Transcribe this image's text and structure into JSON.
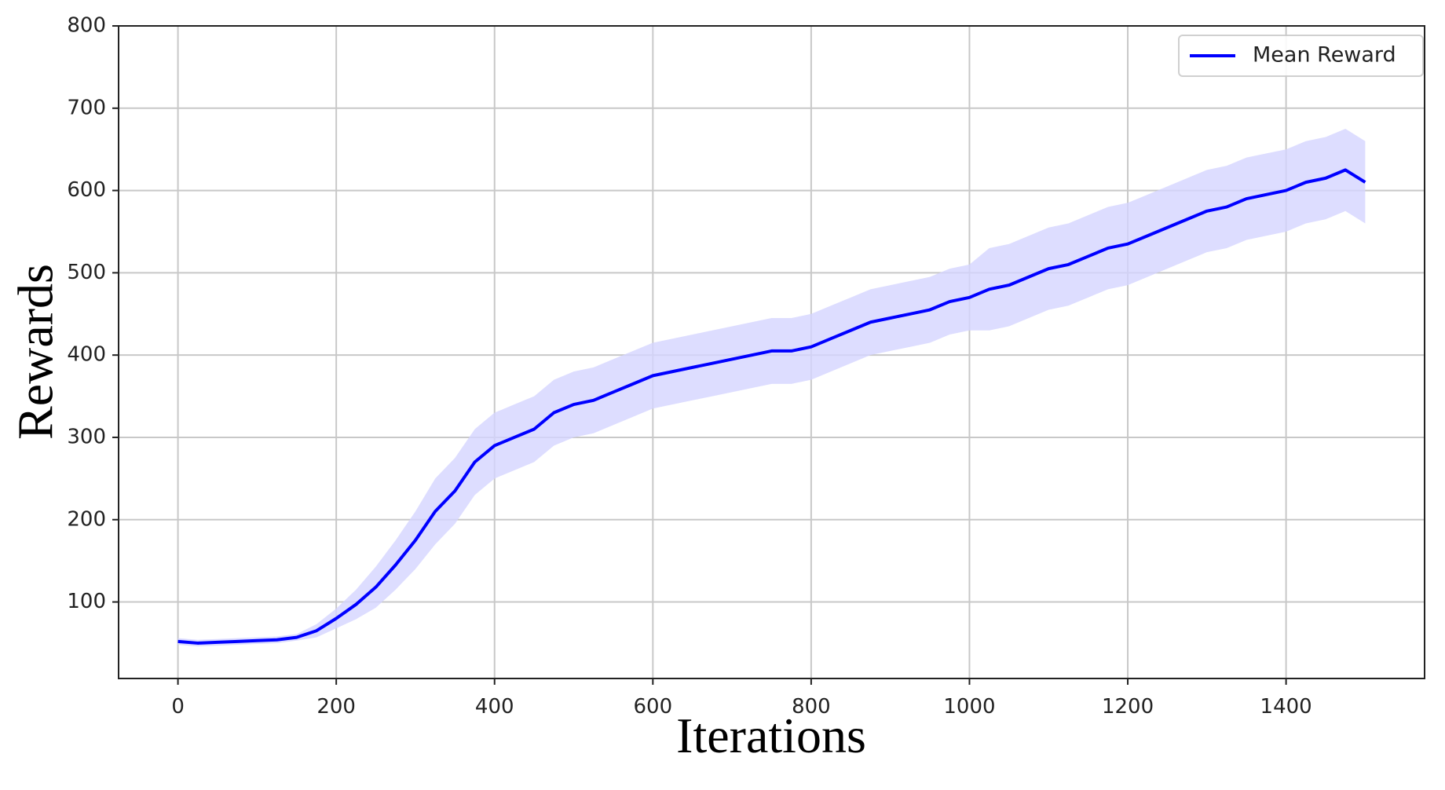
{
  "chart_data": {
    "type": "line",
    "x_label": "Iterations",
    "y_label": "Rewards",
    "x": [
      0,
      25,
      50,
      75,
      100,
      125,
      150,
      175,
      200,
      225,
      250,
      275,
      300,
      325,
      350,
      375,
      400,
      425,
      450,
      475,
      500,
      525,
      550,
      575,
      600,
      625,
      650,
      675,
      700,
      725,
      750,
      775,
      800,
      825,
      850,
      875,
      900,
      925,
      950,
      975,
      1000,
      1025,
      1050,
      1075,
      1100,
      1125,
      1150,
      1175,
      1200,
      1225,
      1250,
      1275,
      1300,
      1325,
      1350,
      1375,
      1400,
      1425,
      1450,
      1475,
      1500
    ],
    "series": [
      {
        "name": "Mean Reward",
        "color": "#0000ff",
        "band_color": "#d4d4ff",
        "values": [
          52,
          50,
          51,
          52,
          53,
          54,
          57,
          65,
          80,
          97,
          118,
          145,
          175,
          210,
          235,
          270,
          290,
          300,
          310,
          330,
          340,
          345,
          355,
          365,
          375,
          380,
          385,
          390,
          395,
          400,
          405,
          405,
          410,
          420,
          430,
          440,
          445,
          450,
          455,
          465,
          470,
          480,
          485,
          495,
          505,
          510,
          520,
          530,
          535,
          545,
          555,
          565,
          575,
          580,
          590,
          595,
          600,
          610,
          615,
          625,
          610
        ],
        "lower": [
          48,
          46,
          47,
          48,
          49,
          50,
          53,
          57,
          68,
          79,
          93,
          115,
          140,
          170,
          195,
          230,
          250,
          260,
          270,
          290,
          300,
          305,
          315,
          325,
          335,
          340,
          345,
          350,
          355,
          360,
          365,
          365,
          370,
          380,
          390,
          400,
          405,
          410,
          415,
          425,
          430,
          430,
          435,
          445,
          455,
          460,
          470,
          480,
          485,
          495,
          505,
          515,
          525,
          530,
          540,
          545,
          550,
          560,
          565,
          575,
          560
        ],
        "upper": [
          56,
          54,
          55,
          56,
          57,
          58,
          61,
          73,
          92,
          115,
          143,
          175,
          210,
          250,
          275,
          310,
          330,
          340,
          350,
          370,
          380,
          385,
          395,
          405,
          415,
          420,
          425,
          430,
          435,
          440,
          445,
          445,
          450,
          460,
          470,
          480,
          485,
          490,
          495,
          505,
          510,
          530,
          535,
          545,
          555,
          560,
          570,
          580,
          585,
          595,
          605,
          615,
          625,
          630,
          640,
          645,
          650,
          660,
          665,
          675,
          660
        ]
      }
    ],
    "xlim": [
      -75,
      1575
    ],
    "ylim": [
      7,
      800
    ],
    "xticks": [
      0,
      200,
      400,
      600,
      800,
      1000,
      1200,
      1400
    ],
    "yticks": [
      100,
      200,
      300,
      400,
      500,
      600,
      700,
      800
    ],
    "grid": true,
    "legend": "upper right"
  }
}
